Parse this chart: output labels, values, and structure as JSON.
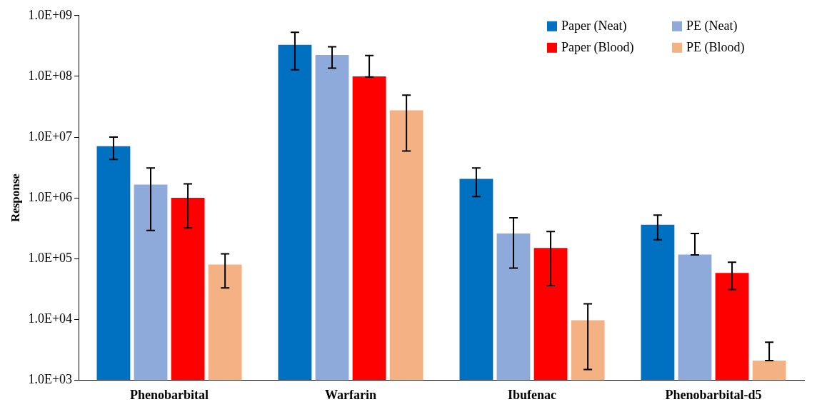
{
  "chart_data": {
    "type": "bar",
    "ylabel": "Response",
    "categories": [
      "Phenobarbital",
      "Warfarin",
      "Ibufenac",
      "Phenobarbital-d5"
    ],
    "series": [
      {
        "name": "Paper (Neat)",
        "color": "#0070c0",
        "values": [
          7100000,
          330000000,
          2050000,
          360000
        ],
        "errors": [
          [
            4300000,
            10000000
          ],
          [
            128000000,
            530000000
          ],
          [
            1050000,
            3100000
          ],
          [
            205000,
            520000
          ]
        ]
      },
      {
        "name": "PE (Neat)",
        "color": "#8eaadb",
        "values": [
          1650000,
          225000000,
          260000,
          117000
        ],
        "errors": [
          [
            290000,
            3100000
          ],
          [
            136000000,
            306000000
          ],
          [
            70000,
            470000
          ],
          [
            115000,
            260000
          ]
        ]
      },
      {
        "name": "Paper (Blood)",
        "color": "#ff0000",
        "values": [
          1000000,
          100000000,
          150000,
          58000
        ],
        "errors": [
          [
            320000,
            1700000
          ],
          [
            98000000,
            220000000
          ],
          [
            36000,
            280000
          ],
          [
            31000,
            87000
          ]
        ]
      },
      {
        "name": "PE (Blood)",
        "color": "#f4b183",
        "values": [
          80000,
          27500000,
          9700,
          2100
        ],
        "errors": [
          [
            33000,
            120000
          ],
          [
            5900000,
            49000000
          ],
          [
            1500,
            18000
          ],
          [
            2100,
            4200
          ]
        ]
      }
    ],
    "log": true,
    "ylim": [
      1000,
      1000000000
    ],
    "yticks": [
      {
        "value": 1000,
        "label": "1.0E+03"
      },
      {
        "value": 10000,
        "label": "1.0E+04"
      },
      {
        "value": 100000,
        "label": "1.0E+05"
      },
      {
        "value": 1000000,
        "label": "1.0E+06"
      },
      {
        "value": 10000000,
        "label": "1.0E+07"
      },
      {
        "value": 100000000,
        "label": "1.0E+08"
      },
      {
        "value": 1000000000,
        "label": "1.0E+09"
      }
    ],
    "legend": "top right"
  }
}
